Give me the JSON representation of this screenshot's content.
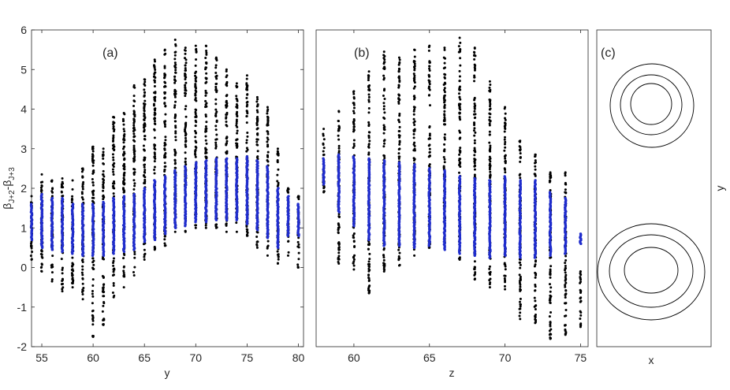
{
  "chart_data": [
    {
      "type": "scatter",
      "panel_label": "(a)",
      "xlabel": "y",
      "ylabel": "β_{J+2}-β_{J+3}",
      "ylabel_parts": [
        "β",
        "J+2",
        "-β",
        "J+3"
      ],
      "xlim": [
        54,
        80.5
      ],
      "ylim": [
        -2,
        6
      ],
      "xticks": [
        55,
        60,
        65,
        70,
        75,
        80
      ],
      "yticks": [
        -2,
        -1,
        0,
        1,
        2,
        3,
        4,
        5,
        6
      ],
      "grid": false,
      "colors": {
        "outer_points": "#000000",
        "inner_points": "#1f2ccc"
      },
      "columns": [
        {
          "x": 54,
          "min": 0.2,
          "max": 1.8,
          "blue_min": 0.7,
          "blue_max": 1.6
        },
        {
          "x": 55,
          "min": -0.1,
          "max": 2.35,
          "blue_min": 0.5,
          "blue_max": 1.85
        },
        {
          "x": 56,
          "min": -0.35,
          "max": 2.2,
          "blue_min": 0.45,
          "blue_max": 1.75
        },
        {
          "x": 57,
          "min": -0.6,
          "max": 2.25,
          "blue_min": 0.4,
          "blue_max": 1.75
        },
        {
          "x": 58,
          "min": -0.5,
          "max": 2.2,
          "blue_min": 0.35,
          "blue_max": 1.6
        },
        {
          "x": 59,
          "min": -0.8,
          "max": 2.5,
          "blue_min": 0.3,
          "blue_max": 1.6
        },
        {
          "x": 60,
          "min": -1.75,
          "max": 3.05,
          "blue_min": 0.3,
          "blue_max": 1.6
        },
        {
          "x": 61,
          "min": -1.45,
          "max": 3.0,
          "blue_min": 0.3,
          "blue_max": 1.65
        },
        {
          "x": 62,
          "min": -0.75,
          "max": 3.8,
          "blue_min": 0.35,
          "blue_max": 1.75
        },
        {
          "x": 63,
          "min": -0.5,
          "max": 3.9,
          "blue_min": 0.4,
          "blue_max": 1.8
        },
        {
          "x": 64,
          "min": -0.2,
          "max": 4.6,
          "blue_min": 0.45,
          "blue_max": 1.85
        },
        {
          "x": 65,
          "min": 0.2,
          "max": 4.75,
          "blue_min": 0.65,
          "blue_max": 2.0
        },
        {
          "x": 66,
          "min": 0.45,
          "max": 5.25,
          "blue_min": 0.7,
          "blue_max": 2.2
        },
        {
          "x": 67,
          "min": 0.55,
          "max": 5.5,
          "blue_min": 0.85,
          "blue_max": 2.3
        },
        {
          "x": 68,
          "min": 0.9,
          "max": 5.75,
          "blue_min": 1.0,
          "blue_max": 2.45
        },
        {
          "x": 69,
          "min": 0.9,
          "max": 5.55,
          "blue_min": 1.05,
          "blue_max": 2.55
        },
        {
          "x": 70,
          "min": 1.0,
          "max": 5.6,
          "blue_min": 1.15,
          "blue_max": 2.65
        },
        {
          "x": 71,
          "min": 1.0,
          "max": 5.6,
          "blue_min": 1.15,
          "blue_max": 2.7
        },
        {
          "x": 72,
          "min": 1.0,
          "max": 5.3,
          "blue_min": 1.2,
          "blue_max": 2.75
        },
        {
          "x": 73,
          "min": 0.9,
          "max": 5.0,
          "blue_min": 1.2,
          "blue_max": 2.75
        },
        {
          "x": 74,
          "min": 0.9,
          "max": 4.65,
          "blue_min": 1.2,
          "blue_max": 2.75
        },
        {
          "x": 75,
          "min": 0.8,
          "max": 4.85,
          "blue_min": 1.1,
          "blue_max": 2.8
        },
        {
          "x": 76,
          "min": 0.5,
          "max": 4.3,
          "blue_min": 0.95,
          "blue_max": 2.7
        },
        {
          "x": 77,
          "min": 0.3,
          "max": 4.05,
          "blue_min": 0.75,
          "blue_max": 2.55
        },
        {
          "x": 78,
          "min": 0.1,
          "max": 3.0,
          "blue_min": 0.5,
          "blue_max": 2.0
        },
        {
          "x": 79,
          "min": 0.3,
          "max": 2.0,
          "blue_min": 0.8,
          "blue_max": 1.8
        },
        {
          "x": 80,
          "min": 0.0,
          "max": 1.8,
          "blue_min": 0.8,
          "blue_max": 1.6
        }
      ]
    },
    {
      "type": "scatter",
      "panel_label": "(b)",
      "xlabel": "z",
      "xlim": [
        57.5,
        75.5
      ],
      "ylim": [
        -2,
        6
      ],
      "xticks": [
        60,
        65,
        70,
        75
      ],
      "grid": false,
      "colors": {
        "outer_points": "#000000",
        "inner_points": "#1f2ccc"
      },
      "columns": [
        {
          "x": 58,
          "min": 1.9,
          "max": 3.5,
          "blue_min": 2.1,
          "blue_max": 2.75
        },
        {
          "x": 59,
          "min": 0.1,
          "max": 3.95,
          "blue_min": 1.4,
          "blue_max": 2.85
        },
        {
          "x": 60,
          "min": -0.05,
          "max": 4.45,
          "blue_min": 1.05,
          "blue_max": 2.8
        },
        {
          "x": 61,
          "min": -0.65,
          "max": 4.95,
          "blue_min": 0.7,
          "blue_max": 2.75
        },
        {
          "x": 62,
          "min": -0.1,
          "max": 5.45,
          "blue_min": 0.55,
          "blue_max": 2.7
        },
        {
          "x": 63,
          "min": 0.05,
          "max": 5.3,
          "blue_min": 0.55,
          "blue_max": 2.65
        },
        {
          "x": 64,
          "min": 0.3,
          "max": 5.5,
          "blue_min": 0.5,
          "blue_max": 2.6
        },
        {
          "x": 65,
          "min": 0.5,
          "max": 5.6,
          "blue_min": 0.55,
          "blue_max": 2.5
        },
        {
          "x": 66,
          "min": 0.6,
          "max": 5.55,
          "blue_min": 0.45,
          "blue_max": 2.45
        },
        {
          "x": 67,
          "min": 0.2,
          "max": 5.8,
          "blue_min": 0.35,
          "blue_max": 2.3
        },
        {
          "x": 68,
          "min": -0.3,
          "max": 5.55,
          "blue_min": 0.3,
          "blue_max": 2.25
        },
        {
          "x": 69,
          "min": -0.5,
          "max": 4.7,
          "blue_min": 0.25,
          "blue_max": 2.2
        },
        {
          "x": 70,
          "min": -0.55,
          "max": 4.05,
          "blue_min": 0.3,
          "blue_max": 2.3
        },
        {
          "x": 71,
          "min": -1.3,
          "max": 3.2,
          "blue_min": 0.25,
          "blue_max": 2.2
        },
        {
          "x": 72,
          "min": -1.4,
          "max": 2.85,
          "blue_min": 0.25,
          "blue_max": 2.2
        },
        {
          "x": 73,
          "min": -1.8,
          "max": 2.4,
          "blue_min": 0.3,
          "blue_max": 1.9
        },
        {
          "x": 74,
          "min": -1.7,
          "max": 2.4,
          "blue_min": 0.35,
          "blue_max": 1.75
        },
        {
          "x": 75,
          "min": -1.5,
          "max": -0.1,
          "blue_min": 0.6,
          "blue_max": 0.85
        }
      ]
    },
    {
      "type": "diagram",
      "panel_label": "(c)",
      "xlabel": "x",
      "ylabel": "y"
    }
  ]
}
